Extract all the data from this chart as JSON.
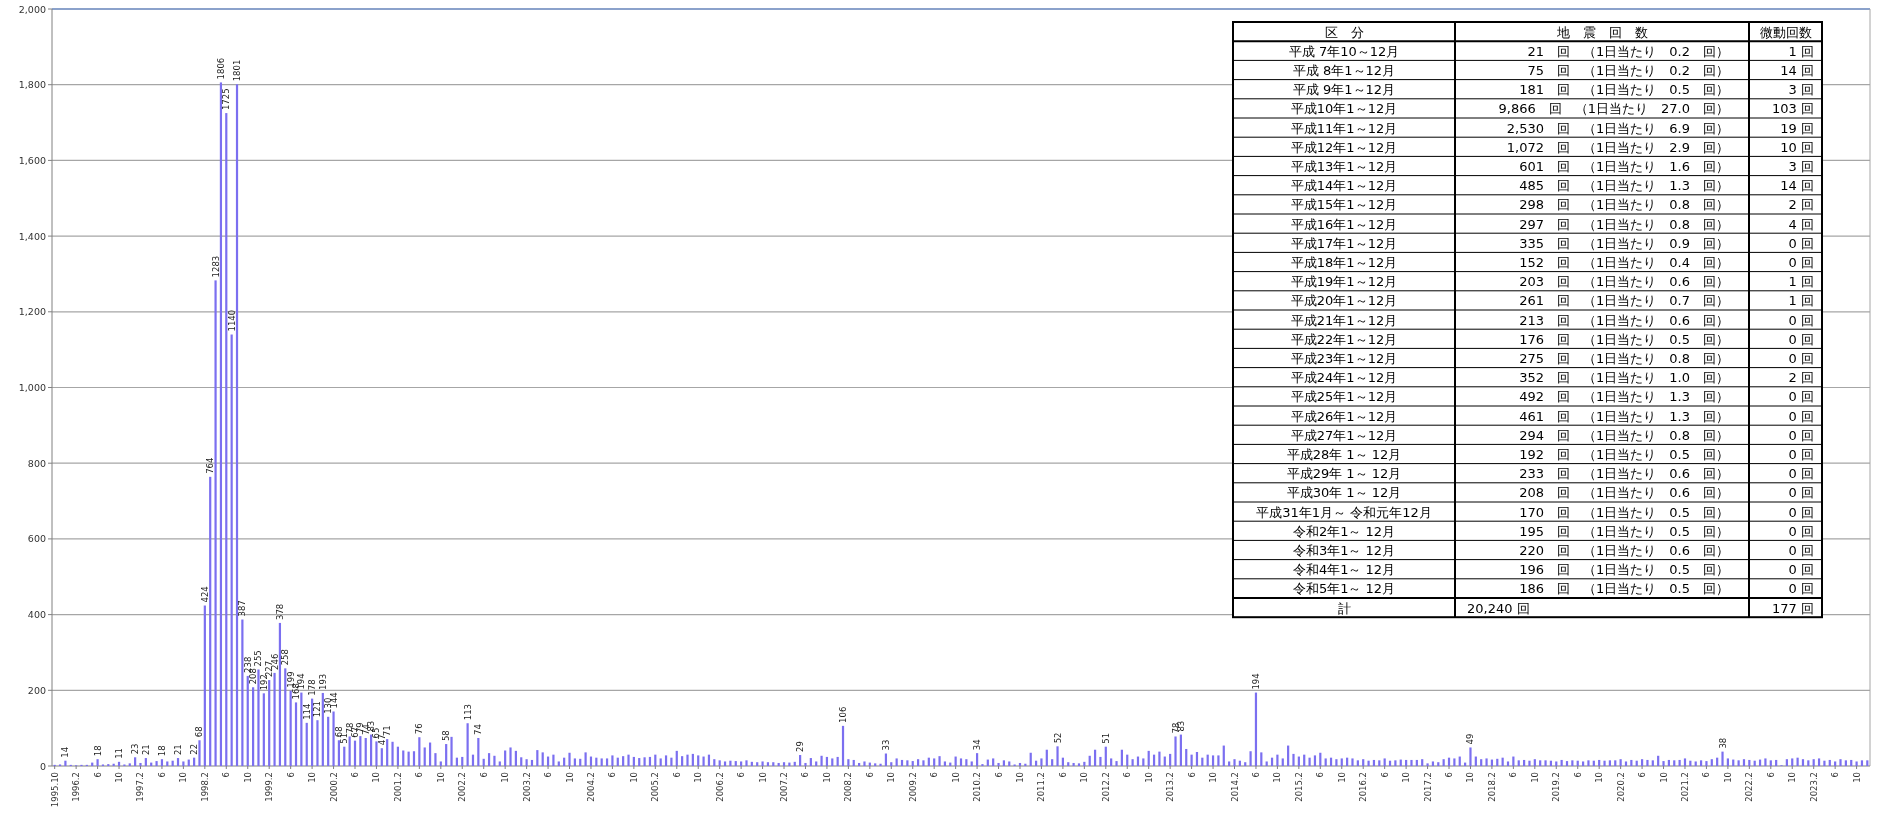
{
  "chart_data": [
    {
      "type": "bar",
      "color": "#7b6ff0",
      "ylim": [
        0,
        2000
      ],
      "yticks": [
        0,
        200,
        400,
        600,
        800,
        {
          "value": 1000,
          "label": "1,000"
        },
        {
          "value": 1200,
          "label": "1,200"
        },
        {
          "value": 1400,
          "label": "1,400"
        },
        {
          "value": 1600,
          "label": "1,600"
        },
        {
          "value": 1800,
          "label": "1,800"
        },
        {
          "value": 2000,
          "label": "2,000"
        }
      ],
      "grid": "y",
      "categories": [
        "1995.10",
        null,
        null,
        null,
        "1996.2",
        null,
        null,
        null,
        "6",
        null,
        null,
        null,
        "10",
        null,
        null,
        null,
        "1997.2",
        null,
        null,
        null,
        "6",
        null,
        null,
        null,
        "10",
        null,
        null,
        null,
        "1998.2",
        null,
        null,
        null,
        "6",
        null,
        null,
        null,
        "10",
        null,
        null,
        null,
        "1999.2",
        null,
        null,
        null,
        "6",
        null,
        null,
        null,
        "10",
        null,
        null,
        null,
        "2000.2",
        null,
        null,
        null,
        "6",
        null,
        null,
        null,
        "10",
        null,
        null,
        null,
        "2001.2",
        null,
        null,
        null,
        "6",
        null,
        null,
        null,
        "10",
        null,
        null,
        null,
        "2002.2",
        null,
        null,
        null,
        "6",
        null,
        null,
        null,
        "10",
        null,
        null,
        null,
        "2003.2",
        null,
        null,
        null,
        "6",
        null,
        null,
        null,
        "10",
        null,
        null,
        null,
        "2004.2",
        null,
        null,
        null,
        "6",
        null,
        null,
        null,
        "10",
        null,
        null,
        null,
        "2005.2",
        null,
        null,
        null,
        "6",
        null,
        null,
        null,
        "10",
        null,
        null,
        null,
        "2006.2",
        null,
        null,
        null,
        "6",
        null,
        null,
        null,
        "10",
        null,
        null,
        null,
        "2007.2",
        null,
        null,
        null,
        "6",
        null,
        null,
        null,
        "10",
        null,
        null,
        null,
        "2008.2",
        null,
        null,
        null,
        "6",
        null,
        null,
        null,
        "10",
        null,
        null,
        null,
        "2009.2",
        null,
        null,
        null,
        "6",
        null,
        null,
        null,
        "10",
        null,
        null,
        null,
        "2010.2",
        null,
        null,
        null,
        "6",
        null,
        null,
        null,
        "10",
        null,
        null,
        null,
        "2011.2",
        null,
        null,
        null,
        "6",
        null,
        null,
        null,
        "10",
        null,
        null,
        null,
        "2012.2",
        null,
        null,
        null,
        "6",
        null,
        null,
        null,
        "10",
        null,
        null,
        null,
        "2013.2",
        null,
        null,
        null,
        "6",
        null,
        null,
        null,
        "10",
        null,
        null,
        null,
        "2014.2",
        null,
        null,
        null,
        "6",
        null,
        null,
        null,
        "10",
        null,
        null,
        null,
        "2015.2",
        null,
        null,
        null,
        "6",
        null,
        null,
        null,
        "10",
        null,
        null,
        null,
        "2016.2",
        null,
        null,
        null,
        "6",
        null,
        null,
        null,
        "10",
        null,
        null,
        null,
        "2017.2",
        null,
        null,
        null,
        "6",
        null,
        null,
        null,
        "10",
        null,
        null,
        null,
        "2018.2",
        null,
        null,
        null,
        "6",
        null,
        null,
        null,
        "10",
        null,
        null,
        null,
        "2019.2",
        null,
        null,
        null,
        "6",
        null,
        null,
        null,
        "10",
        null,
        null,
        null,
        "2020.2",
        null,
        null,
        null,
        "6",
        null,
        null,
        null,
        "10",
        null,
        null,
        null,
        "2021.2",
        null,
        null,
        null,
        "6",
        null,
        null,
        null,
        "10",
        null,
        null,
        null,
        "2022.2",
        null,
        null,
        null,
        "6",
        null,
        null,
        null,
        "10",
        null,
        null,
        null,
        "2023.2",
        null,
        null,
        null,
        "6",
        null,
        null,
        null,
        "10",
        null,
        null
      ],
      "values": [
        3,
        4,
        14,
        3,
        2,
        3,
        3,
        9,
        18,
        4,
        5,
        6,
        11,
        4,
        7,
        23,
        8,
        21,
        9,
        13,
        18,
        12,
        14,
        21,
        12,
        17,
        22,
        68,
        424,
        764,
        1283,
        1806,
        1725,
        1140,
        1801,
        387,
        238,
        208,
        255,
        192,
        227,
        246,
        378,
        258,
        199,
        168,
        194,
        114,
        178,
        121,
        193,
        130,
        144,
        68,
        51,
        78,
        67,
        79,
        74,
        83,
        65,
        47,
        71,
        64,
        51,
        41,
        38,
        39,
        76,
        49,
        62,
        34,
        12,
        58,
        77,
        22,
        24,
        113,
        30,
        74,
        19,
        34,
        27,
        12,
        41,
        49,
        40,
        23,
        18,
        16,
        42,
        36,
        25,
        30,
        12,
        22,
        35,
        20,
        19,
        36,
        25,
        22,
        20,
        20,
        28,
        22,
        26,
        30,
        24,
        21,
        23,
        24,
        30,
        20,
        28,
        22,
        40,
        26,
        30,
        32,
        28,
        25,
        30,
        18,
        15,
        12,
        14,
        13,
        12,
        15,
        11,
        10,
        12,
        10,
        10,
        8,
        10,
        9,
        11,
        29,
        8,
        21,
        12,
        27,
        24,
        20,
        24,
        106,
        18,
        16,
        8,
        12,
        9,
        7,
        6,
        33,
        10,
        20,
        16,
        15,
        13,
        18,
        15,
        22,
        20,
        26,
        12,
        9,
        25,
        20,
        18,
        12,
        34,
        5,
        17,
        20,
        8,
        15,
        12,
        4,
        8,
        6,
        35,
        14,
        20,
        43,
        18,
        52,
        22,
        10,
        8,
        7,
        11,
        27,
        43,
        24,
        51,
        20,
        13,
        43,
        30,
        18,
        25,
        20,
        40,
        30,
        38,
        25,
        32,
        78,
        83,
        45,
        30,
        37,
        22,
        30,
        28,
        28,
        54,
        12,
        18,
        14,
        10,
        39,
        194,
        36,
        12,
        22,
        30,
        20,
        54,
        32,
        25,
        30,
        22,
        28,
        35,
        20,
        22,
        18,
        20,
        22,
        20,
        15,
        18,
        14,
        16,
        15,
        20,
        14,
        15,
        17,
        16,
        16,
        16,
        18,
        7,
        12,
        10,
        18,
        22,
        20,
        25,
        9,
        49,
        25,
        18,
        20,
        17,
        19,
        22,
        12,
        25,
        15,
        16,
        14,
        18,
        15,
        15,
        14,
        12,
        16,
        13,
        15,
        14,
        12,
        15,
        14,
        16,
        14,
        15,
        15,
        18,
        12,
        16,
        14,
        18,
        16,
        15,
        27,
        13,
        16,
        15,
        16,
        20,
        14,
        12,
        15,
        13,
        18,
        22,
        38,
        20,
        17,
        15,
        18,
        16,
        14,
        17,
        20,
        15,
        16,
        2,
        18,
        20,
        22,
        18,
        15,
        18,
        20,
        14,
        16,
        12,
        18,
        15,
        16,
        12,
        15,
        15
      ],
      "value_labels": [
        null,
        null,
        "14",
        null,
        null,
        null,
        null,
        null,
        "18",
        null,
        null,
        null,
        "11",
        null,
        null,
        "23",
        null,
        "21",
        null,
        null,
        "18",
        null,
        null,
        "21",
        null,
        null,
        "22",
        "68",
        "424",
        "764",
        "1283",
        "1806",
        "1725",
        "1140",
        "1801",
        "387",
        "238",
        "208",
        "255",
        "192",
        "227",
        "246",
        "378",
        "258",
        "199",
        "168",
        "194",
        "114",
        "178",
        "121",
        "193",
        "130",
        "144",
        "68",
        "51",
        "78",
        "67",
        "79",
        "74",
        "83",
        "65",
        "47",
        "71",
        null,
        null,
        null,
        null,
        null,
        "76",
        null,
        null,
        null,
        null,
        "58",
        null,
        null,
        null,
        "113",
        null,
        "74",
        null,
        null,
        null,
        null,
        null,
        null,
        null,
        null,
        null,
        null,
        null,
        null,
        null,
        null,
        null,
        null,
        null,
        null,
        null,
        null,
        null,
        null,
        null,
        null,
        null,
        null,
        null,
        null,
        null,
        null,
        null,
        null,
        null,
        null,
        null,
        null,
        null,
        null,
        null,
        null,
        null,
        null,
        null,
        null,
        null,
        null,
        null,
        null,
        null,
        null,
        null,
        null,
        null,
        null,
        null,
        null,
        null,
        null,
        null,
        "29",
        null,
        null,
        null,
        null,
        null,
        null,
        null,
        "106",
        null,
        null,
        null,
        null,
        null,
        null,
        null,
        "33",
        null,
        null,
        null,
        null,
        null,
        null,
        null,
        null,
        null,
        null,
        null,
        null,
        null,
        null,
        null,
        null,
        "34",
        null,
        null,
        null,
        null,
        null,
        null,
        null,
        null,
        null,
        null,
        null,
        null,
        null,
        null,
        "52",
        null,
        null,
        null,
        null,
        null,
        null,
        null,
        null,
        "51",
        null,
        null,
        null,
        null,
        null,
        null,
        null,
        null,
        null,
        null,
        null,
        null,
        "78",
        "83",
        null,
        null,
        null,
        null,
        null,
        null,
        null,
        null,
        null,
        null,
        null,
        null,
        null,
        "194",
        null,
        null,
        null,
        null,
        null,
        null,
        null,
        null,
        null,
        null,
        null,
        null,
        null,
        null,
        null,
        null,
        null,
        null,
        null,
        null,
        null,
        null,
        null,
        null,
        null,
        null,
        null,
        null,
        null,
        null,
        null,
        null,
        null,
        null,
        null,
        null,
        null,
        null,
        null,
        "49",
        null,
        null,
        null,
        null,
        null,
        null,
        null,
        null,
        null,
        null,
        null,
        null,
        null,
        null,
        null,
        null,
        null,
        null,
        null,
        null,
        null,
        null,
        null,
        null,
        null,
        null,
        null,
        null,
        null,
        null,
        null,
        null,
        null,
        null,
        null,
        null,
        null,
        null,
        null,
        null,
        null,
        null,
        null,
        null,
        null,
        null,
        "38",
        null,
        null,
        null,
        null,
        null,
        null,
        null,
        null,
        null,
        null,
        null,
        null,
        null,
        null,
        null,
        null,
        null,
        null,
        null,
        null,
        null,
        null,
        null,
        null,
        null,
        null,
        null
      ]
    },
    {
      "type": "other",
      "annotations": [
        "区　分",
        "地　震　回　数",
        "微動回数",
        "平成 7年10～12月",
        "21　回　（1日当たり　0.2　回）",
        "1 回",
        "平成 8年1～12月",
        "75　回　（1日当たり　0.2　回）",
        "14 回",
        "平成 9年1～12月",
        "181　回　（1日当たり　0.5　回）",
        "3 回",
        "平成10年1～12月",
        "9,866　回　（1日当たり　27.0　回）",
        "103 回",
        "平成11年1～12月",
        "2,530　回　（1日当たり　6.9　回）",
        "19 回",
        "平成12年1～12月",
        "1,072　回　（1日当たり　2.9　回）",
        "10 回",
        "平成13年1～12月",
        "601　回　（1日当たり　1.6　回）",
        "3 回",
        "平成14年1～12月",
        "485　回　（1日当たり　1.3　回）",
        "14 回",
        "平成15年1～12月",
        "298　回　（1日当たり　0.8　回）",
        "2 回",
        "平成16年1～12月",
        "297　回　（1日当たり　0.8　回）",
        "4 回",
        "平成17年1～12月",
        "335　回　（1日当たり　0.9　回）",
        "0 回",
        "平成18年1～12月",
        "152　回　（1日当たり　0.4　回）",
        "0 回",
        "平成19年1～12月",
        "203　回　（1日当たり　0.6　回）",
        "1 回",
        "平成20年1～12月",
        "261　回　（1日当たり　0.7　回）",
        "1 回",
        "平成21年1～12月",
        "213　回　（1日当たり　0.6　回）",
        "0 回",
        "平成22年1～12月",
        "176　回　（1日当たり　0.5　回）",
        "0 回",
        "平成23年1～12月",
        "275　回　（1日当たり　0.8　回）",
        "0 回",
        "平成24年1～12月",
        "352　回　（1日当たり　1.0　回）",
        "2 回",
        "平成25年1～12月",
        "492　回　（1日当たり　1.3　回）",
        "0 回",
        "平成26年1～12月",
        "461　回　（1日当たり　1.3　回）",
        "0 回",
        "平成27年1～12月",
        "294　回　（1日当たり　0.8　回）",
        "0 回",
        "平成28年 1～ 12月",
        "192　回　（1日当たり　0.5　回）",
        "0 回",
        "平成29年 1～ 12月",
        "233　回　（1日当たり　0.6　回）",
        "0 回",
        "平成30年 1～ 12月",
        "208　回　（1日当たり　0.6　回）",
        "0 回",
        "平成31年1月～ 令和元年12月",
        "170　回　（1日当たり　0.5　回）",
        "0 回",
        "令和2年1～ 12月",
        "195　回　（1日当たり　0.5　回）",
        "0 回",
        "令和3年1～ 12月",
        "220　回　（1日当たり　0.6　回）",
        "0 回",
        "令和4年1～ 12月",
        "196　回　（1日当たり　0.5　回）",
        "0 回",
        "令和5年1～ 12月",
        "186　回　（1日当たり　0.5　回）",
        "0 回",
        "計",
        "20,240 回",
        "177 回"
      ]
    }
  ]
}
